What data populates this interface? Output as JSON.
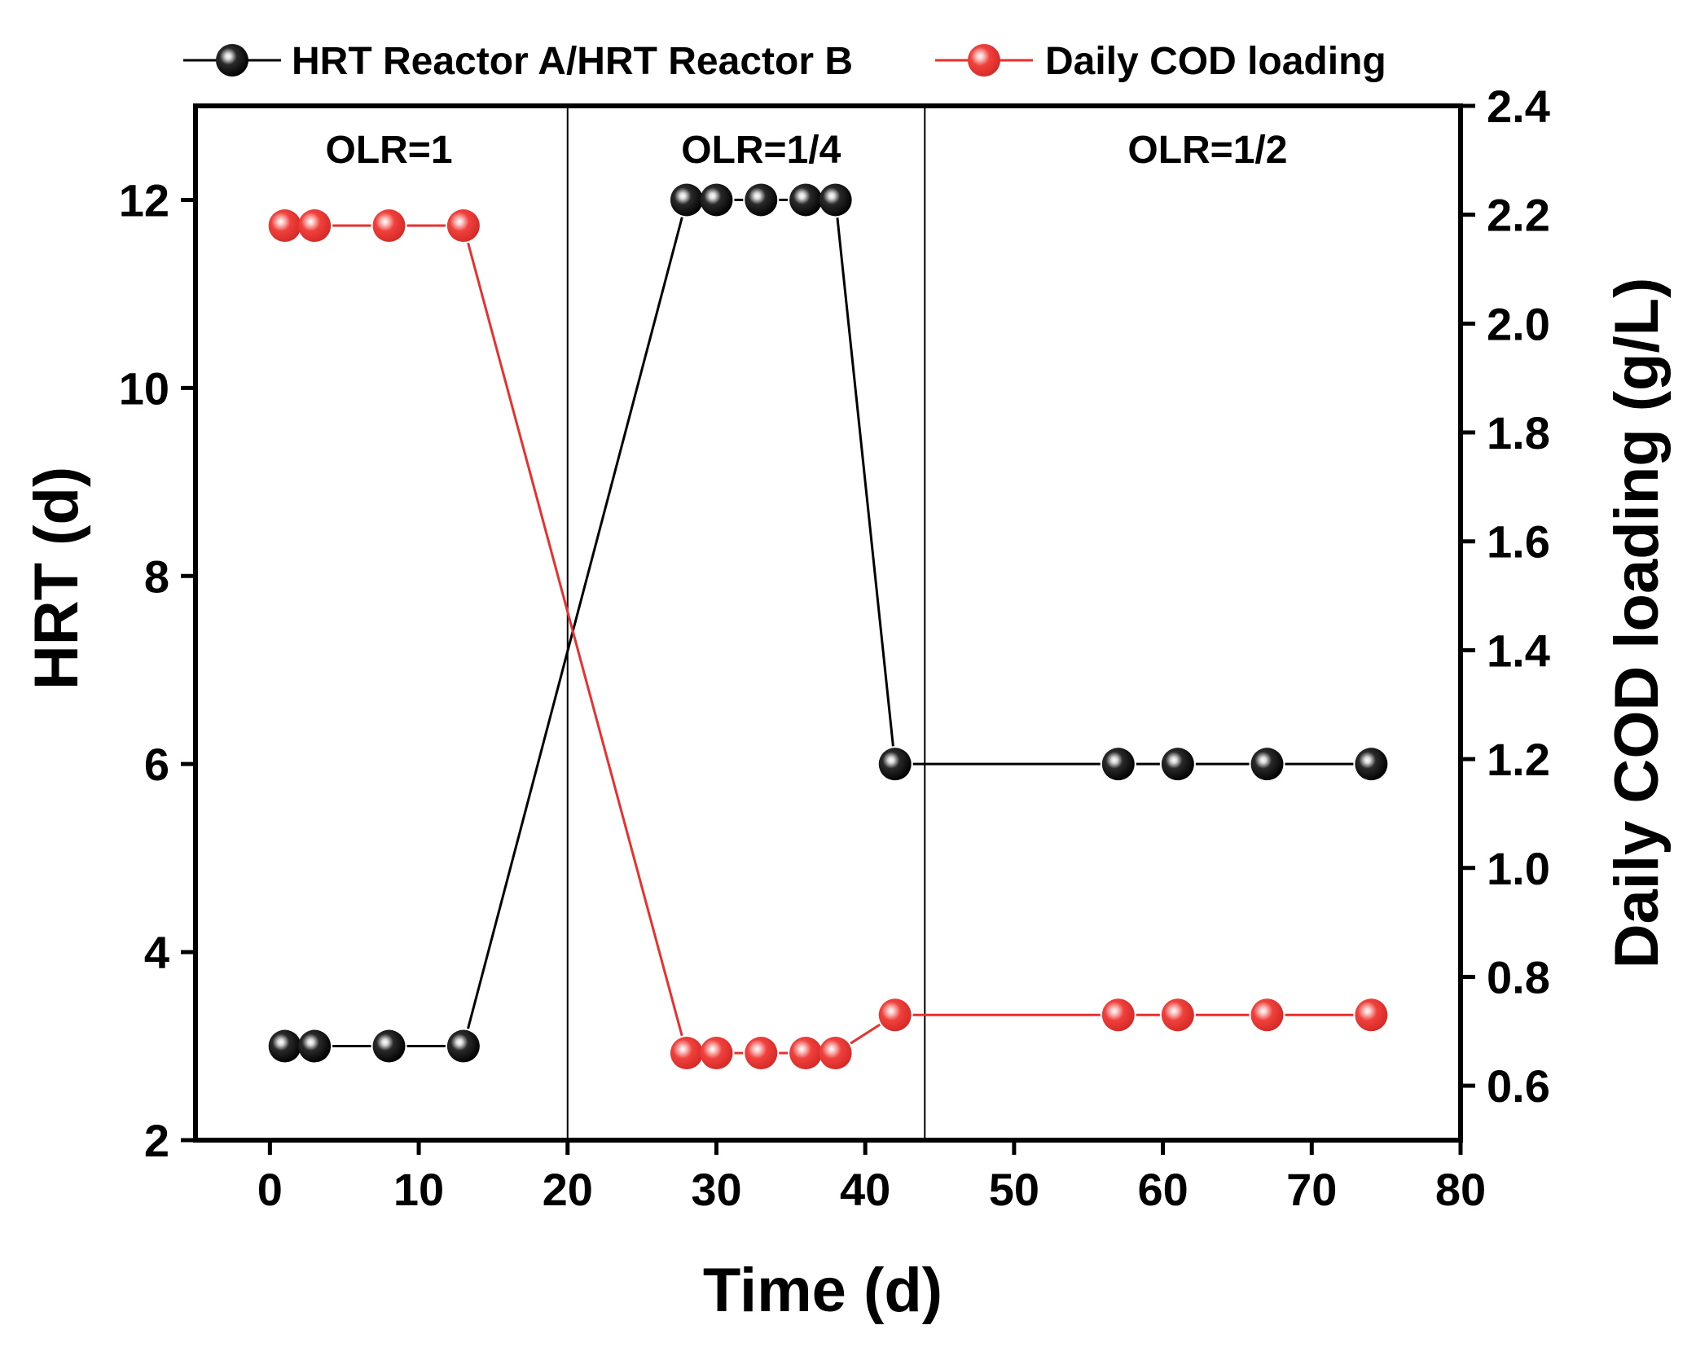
{
  "chart_data": {
    "type": "line",
    "title": "",
    "xlabel": "Time (d)",
    "ylabel": "HRT (d)",
    "y2label": "Daily COD loading (g/L)",
    "xlim": [
      -5,
      80
    ],
    "ylim": [
      2,
      13
    ],
    "y2lim": [
      0.5,
      2.4
    ],
    "xticks": [
      0,
      10,
      20,
      30,
      40,
      50,
      60,
      70,
      80
    ],
    "yticks": [
      2,
      4,
      6,
      8,
      10,
      12
    ],
    "y2ticks": [
      0.6,
      0.8,
      1.0,
      1.2,
      1.4,
      1.6,
      1.8,
      2.0,
      2.2,
      2.4
    ],
    "ytick_labels": [
      "2",
      "4",
      "6",
      "8",
      "10",
      "12"
    ],
    "y2tick_labels": [
      "0.6",
      "0.8",
      "1.0",
      "1.2",
      "1.4",
      "1.6",
      "1.8",
      "2.0",
      "2.2",
      "2.4"
    ],
    "series": [
      {
        "name": "HRT Reactor A/HRT Reactor B",
        "axis": "left",
        "color": "#000000",
        "x": [
          1,
          3,
          8,
          13,
          28,
          30,
          33,
          36,
          38,
          42,
          57,
          61,
          67,
          74
        ],
        "y": [
          3,
          3,
          3,
          3,
          12,
          12,
          12,
          12,
          12,
          6,
          6,
          6,
          6,
          6
        ]
      },
      {
        "name": "Daily COD loading",
        "axis": "right",
        "color": "#e8312f",
        "x": [
          1,
          3,
          8,
          13,
          28,
          30,
          33,
          36,
          38,
          42,
          57,
          61,
          67,
          74
        ],
        "y": [
          2.18,
          2.18,
          2.18,
          2.18,
          0.66,
          0.66,
          0.66,
          0.66,
          0.66,
          0.73,
          0.73,
          0.73,
          0.73,
          0.73
        ]
      }
    ],
    "dividers": [
      20,
      44
    ],
    "regions": [
      {
        "label": "OLR=1",
        "x": 8
      },
      {
        "label": "OLR=1/4",
        "x": 33
      },
      {
        "label": "OLR=1/2",
        "x": 63
      }
    ],
    "legend_position": "top"
  }
}
